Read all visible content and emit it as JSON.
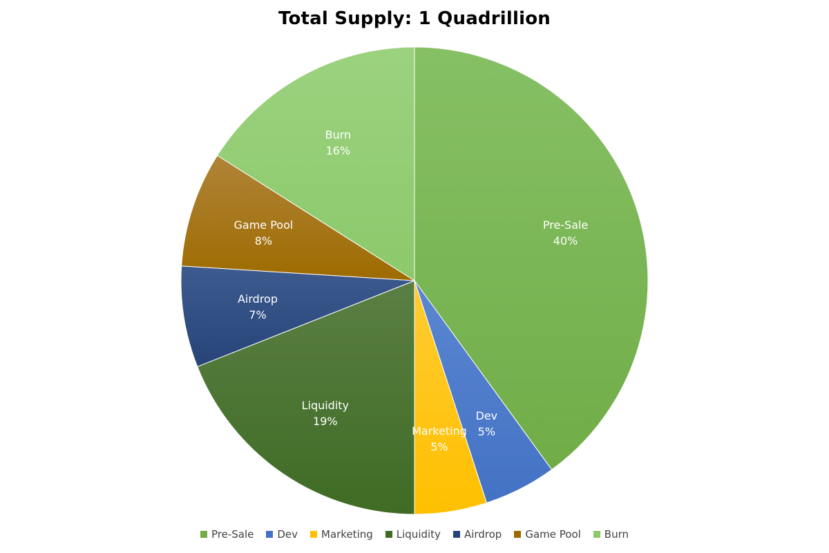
{
  "chart_data": {
    "type": "pie",
    "title": "Total Supply: 1 Quadrillion",
    "legend_position": "bottom",
    "slices": [
      {
        "label": "Pre-Sale",
        "value": 40,
        "pct_label": "40%",
        "color": "#70AD47",
        "gradient_light": "#86C065"
      },
      {
        "label": "Dev",
        "value": 5,
        "pct_label": "5%",
        "color": "#4472C4",
        "gradient_light": "#5A86D1"
      },
      {
        "label": "Marketing",
        "value": 5,
        "pct_label": "5%",
        "color": "#FFC000",
        "gradient_light": "#FFCB33"
      },
      {
        "label": "Liquidity",
        "value": 19,
        "pct_label": "19%",
        "color": "#3F6B24",
        "gradient_light": "#5A7F44"
      },
      {
        "label": "Airdrop",
        "value": 7,
        "pct_label": "7%",
        "color": "#264478",
        "gradient_light": "#3D5B8F"
      },
      {
        "label": "Game Pool",
        "value": 8,
        "pct_label": "8%",
        "color": "#9E6B00",
        "gradient_light": "#B08438"
      },
      {
        "label": "Burn",
        "value": 16,
        "pct_label": "16%",
        "color": "#8BC96B",
        "gradient_light": "#9CD27F"
      }
    ]
  }
}
